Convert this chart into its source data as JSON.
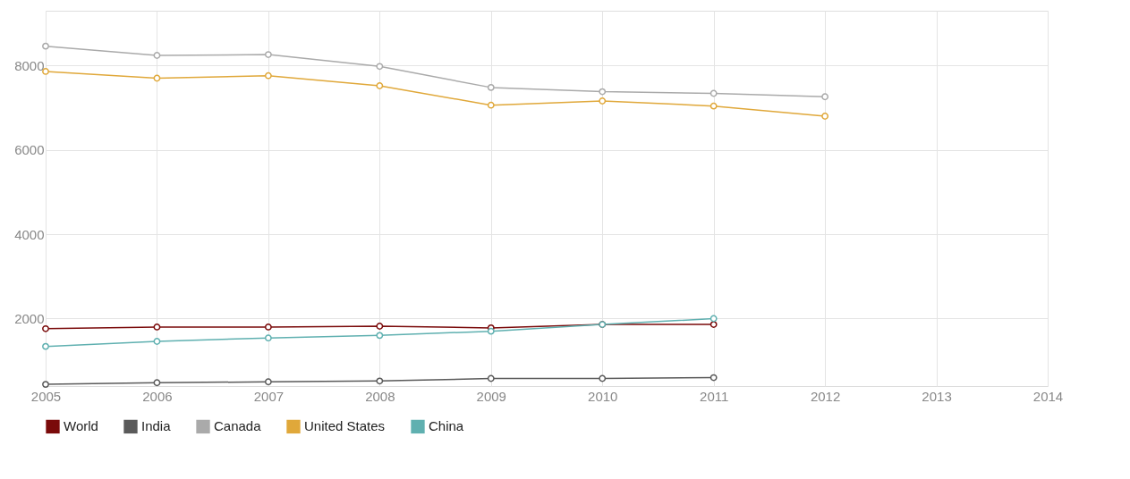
{
  "chart_data": {
    "type": "line",
    "x": [
      2005,
      2006,
      2007,
      2008,
      2009,
      2010,
      2011,
      2012
    ],
    "series": [
      {
        "name": "World",
        "color": "#7a0a0a",
        "values": [
          1760,
          1800,
          1800,
          1820,
          1780,
          1860,
          1860,
          null
        ]
      },
      {
        "name": "India",
        "color": "#5a5a5a",
        "values": [
          440,
          480,
          500,
          520,
          580,
          580,
          600,
          null
        ]
      },
      {
        "name": "Canada",
        "color": "#aaaaaa",
        "values": [
          8460,
          8240,
          8260,
          7980,
          7480,
          7380,
          7340,
          7260
        ]
      },
      {
        "name": "United States",
        "color": "#e0a83a",
        "values": [
          7860,
          7700,
          7760,
          7520,
          7060,
          7160,
          7040,
          6800
        ]
      },
      {
        "name": "China",
        "color": "#5fb0b0",
        "values": [
          1340,
          1460,
          1540,
          1600,
          1700,
          1860,
          2000,
          null
        ]
      }
    ],
    "xlim": [
      2005,
      2014
    ],
    "xticks": [
      2005,
      2006,
      2007,
      2008,
      2009,
      2010,
      2011,
      2012,
      2013,
      2014
    ],
    "ylim": [
      400,
      9300
    ],
    "yticks": [
      2000,
      4000,
      6000,
      8000
    ],
    "grid": true,
    "legend": "bottom left",
    "marker": "circle",
    "line_style": "solid"
  }
}
